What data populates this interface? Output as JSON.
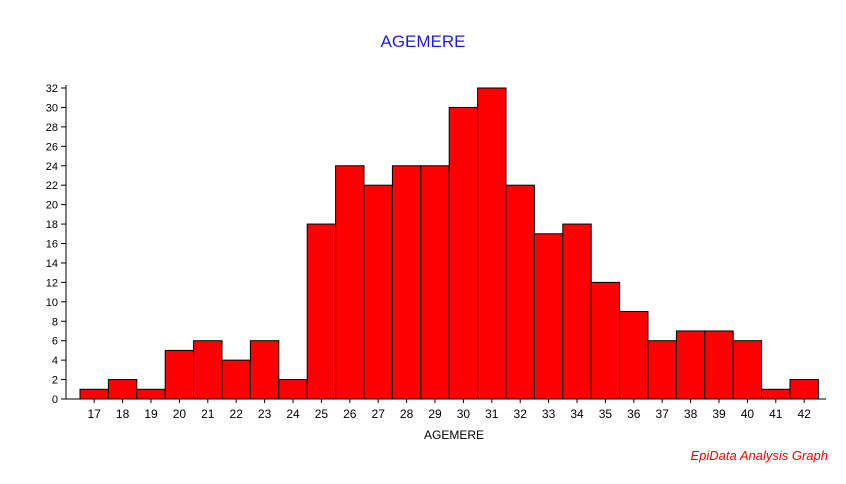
{
  "chart_data": {
    "type": "bar",
    "title": "AGEMERE",
    "xlabel": "AGEMERE",
    "ylabel": "",
    "categories": [
      "17",
      "18",
      "19",
      "20",
      "21",
      "22",
      "23",
      "24",
      "25",
      "26",
      "27",
      "28",
      "29",
      "30",
      "31",
      "32",
      "33",
      "34",
      "35",
      "36",
      "37",
      "38",
      "39",
      "40",
      "41",
      "42"
    ],
    "values": [
      1,
      2,
      1,
      5,
      6,
      4,
      6,
      2,
      18,
      24,
      22,
      24,
      24,
      30,
      32,
      22,
      17,
      18,
      12,
      9,
      6,
      7,
      7,
      6,
      1,
      2
    ],
    "ylim": [
      0,
      32
    ],
    "yticks": [
      0,
      2,
      4,
      6,
      8,
      10,
      12,
      14,
      16,
      18,
      20,
      22,
      24,
      26,
      28,
      30,
      32
    ],
    "grid": false,
    "bar_color": "#ff0000",
    "bar_edge_color": "#000000",
    "title_color": "#1a1aff",
    "footer_color": "#ff0000"
  },
  "footer": "EpiData Analysis Graph"
}
